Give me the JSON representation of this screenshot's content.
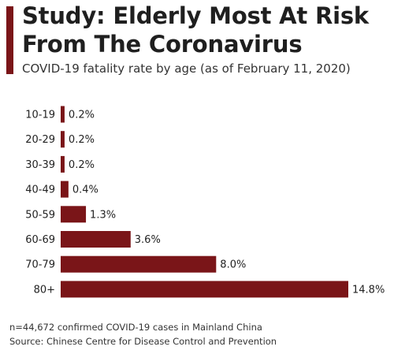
{
  "colors": {
    "accent": "#7a1518",
    "bar": "#7a1518"
  },
  "header": {
    "title_line1": "Study: Elderly Most At Risk",
    "title_line2": "From The Coronavirus",
    "subtitle": "COVID-19 fatality rate by age (as of February 11, 2020)"
  },
  "chart_data": {
    "type": "bar",
    "orientation": "horizontal",
    "title": "Study: Elderly Most At Risk From The Coronavirus",
    "subtitle": "COVID-19 fatality rate by age (as of February 11, 2020)",
    "categories": [
      "10-19",
      "20-29",
      "30-39",
      "40-49",
      "50-59",
      "60-69",
      "70-79",
      "80+"
    ],
    "values": [
      0.2,
      0.2,
      0.2,
      0.4,
      1.3,
      3.6,
      8.0,
      14.8
    ],
    "value_labels": [
      "0.2%",
      "0.2%",
      "0.2%",
      "0.4%",
      "1.3%",
      "3.6%",
      "8.0%",
      "14.8%"
    ],
    "unit": "%",
    "xlim": [
      0,
      14.8
    ],
    "grid": false,
    "legend": "none"
  },
  "footer": {
    "note": "n=44,672 confirmed COVID-19 cases in Mainland China",
    "source": "Source: Chinese Centre for Disease Control and Prevention"
  }
}
